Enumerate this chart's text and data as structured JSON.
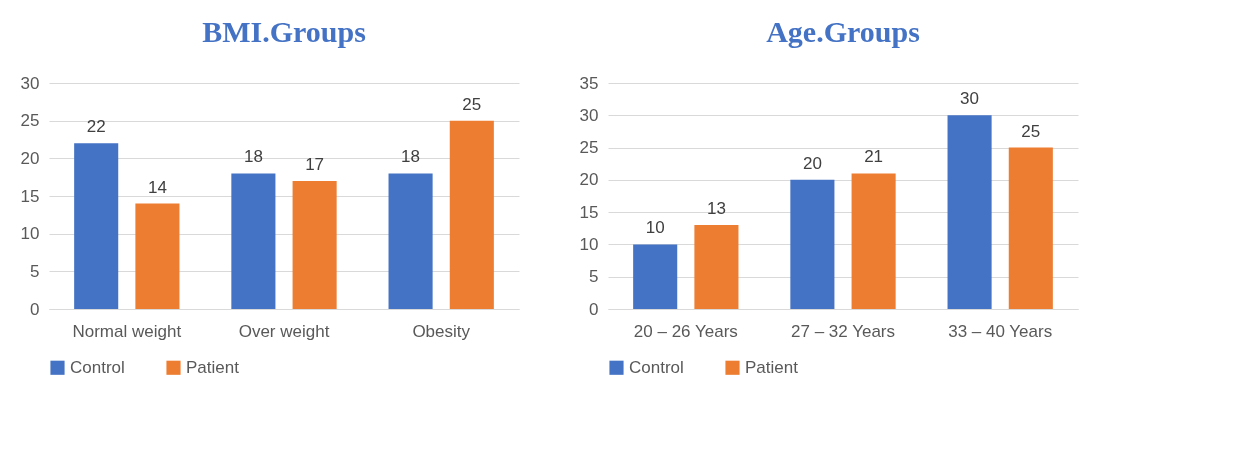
{
  "chart_data": [
    {
      "type": "bar",
      "title": "BMI.Groups",
      "categories": [
        "Normal weight",
        "Over weight",
        "Obesity"
      ],
      "series": [
        {
          "name": "Control",
          "color": "#4472c4",
          "values": [
            22,
            18,
            18
          ]
        },
        {
          "name": "Patient",
          "color": "#ed7d31",
          "values": [
            14,
            17,
            25
          ]
        }
      ],
      "ylim": [
        0,
        30
      ],
      "yticks": [
        0,
        5,
        10,
        15,
        20,
        25,
        30
      ],
      "grid": "y",
      "legend": "bottom",
      "data_labels": true
    },
    {
      "type": "bar",
      "title": "Age.Groups",
      "categories": [
        "20 – 26 Years",
        "27 – 32  Years",
        "33 – 40  Years"
      ],
      "series": [
        {
          "name": "Control",
          "color": "#4472c4",
          "values": [
            10,
            20,
            30
          ]
        },
        {
          "name": "Patient",
          "color": "#ed7d31",
          "values": [
            13,
            21,
            25
          ]
        }
      ],
      "ylim": [
        0,
        35
      ],
      "yticks": [
        0,
        5,
        10,
        15,
        20,
        25,
        30,
        35
      ],
      "grid": "y",
      "legend": "bottom",
      "data_labels": true
    }
  ]
}
